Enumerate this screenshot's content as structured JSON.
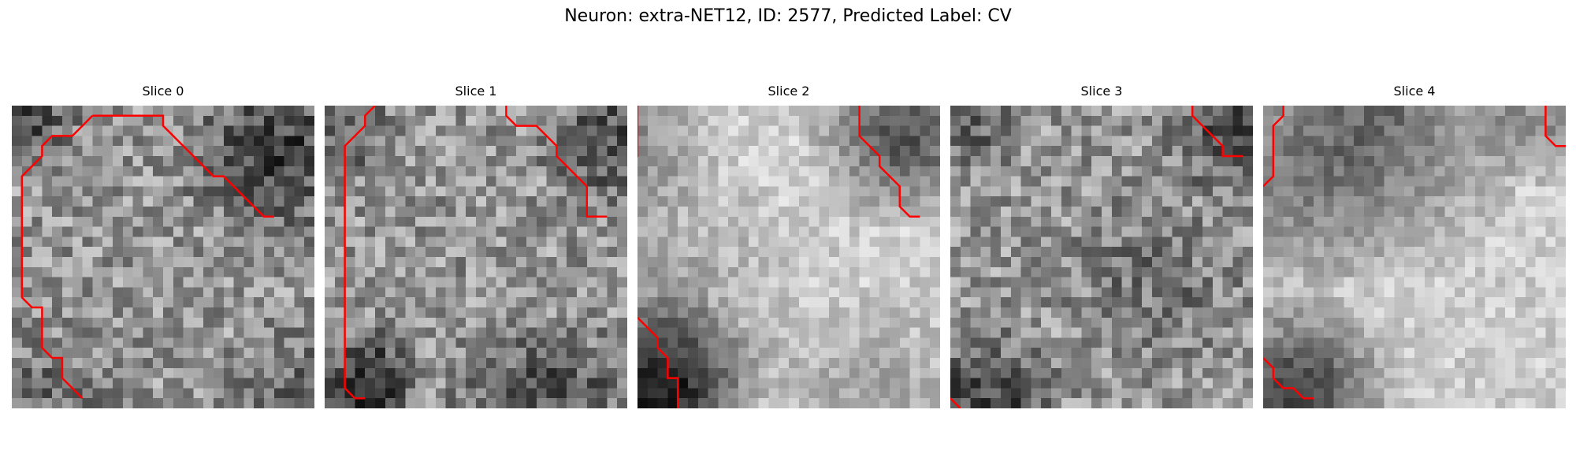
{
  "figure": {
    "title": "Neuron: extra-NET12, ID: 2577, Predicted Label: CV"
  },
  "contour_color": "#ff0000",
  "image_style": "grayscale 30x30 noisy microscopy slices",
  "slices": [
    {
      "title": "Slice 0"
    },
    {
      "title": "Slice 1"
    },
    {
      "title": "Slice 2"
    },
    {
      "title": "Slice 3"
    },
    {
      "title": "Slice 4"
    }
  ]
}
